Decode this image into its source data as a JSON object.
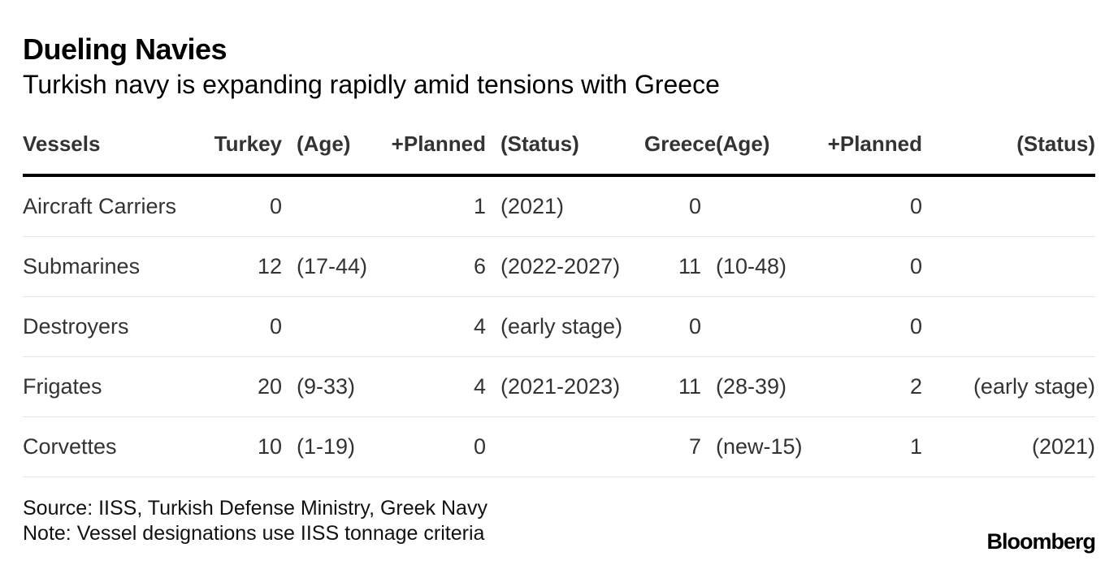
{
  "title": "Dueling Navies",
  "subtitle": "Turkish navy is expanding rapidly amid tensions with Greece",
  "table": {
    "headers": [
      "Vessels",
      "Turkey",
      "(Age)",
      "+Planned",
      "(Status)",
      "Greece",
      "(Age)",
      "+Planned",
      "(Status)"
    ],
    "rows": [
      [
        "Aircraft Carriers",
        "0",
        "",
        "1",
        "(2021)",
        "0",
        "",
        "0",
        ""
      ],
      [
        "Submarines",
        "12",
        "(17-44)",
        "6",
        "(2022-2027)",
        "11",
        "(10-48)",
        "0",
        ""
      ],
      [
        "Destroyers",
        "0",
        "",
        "4",
        "(early stage)",
        "0",
        "",
        "0",
        ""
      ],
      [
        "Frigates",
        "20",
        "(9-33)",
        "4",
        "(2021-2023)",
        "11",
        "(28-39)",
        "2",
        "(early stage)"
      ],
      [
        "Corvettes",
        "10",
        "(1-19)",
        "0",
        "",
        "7",
        "(new-15)",
        "1",
        "(2021)"
      ]
    ]
  },
  "source": "Source: IISS, Turkish Defense Ministry, Greek Navy",
  "note": "Note: Vessel designations use IISS tonnage criteria",
  "brand": "Bloomberg"
}
